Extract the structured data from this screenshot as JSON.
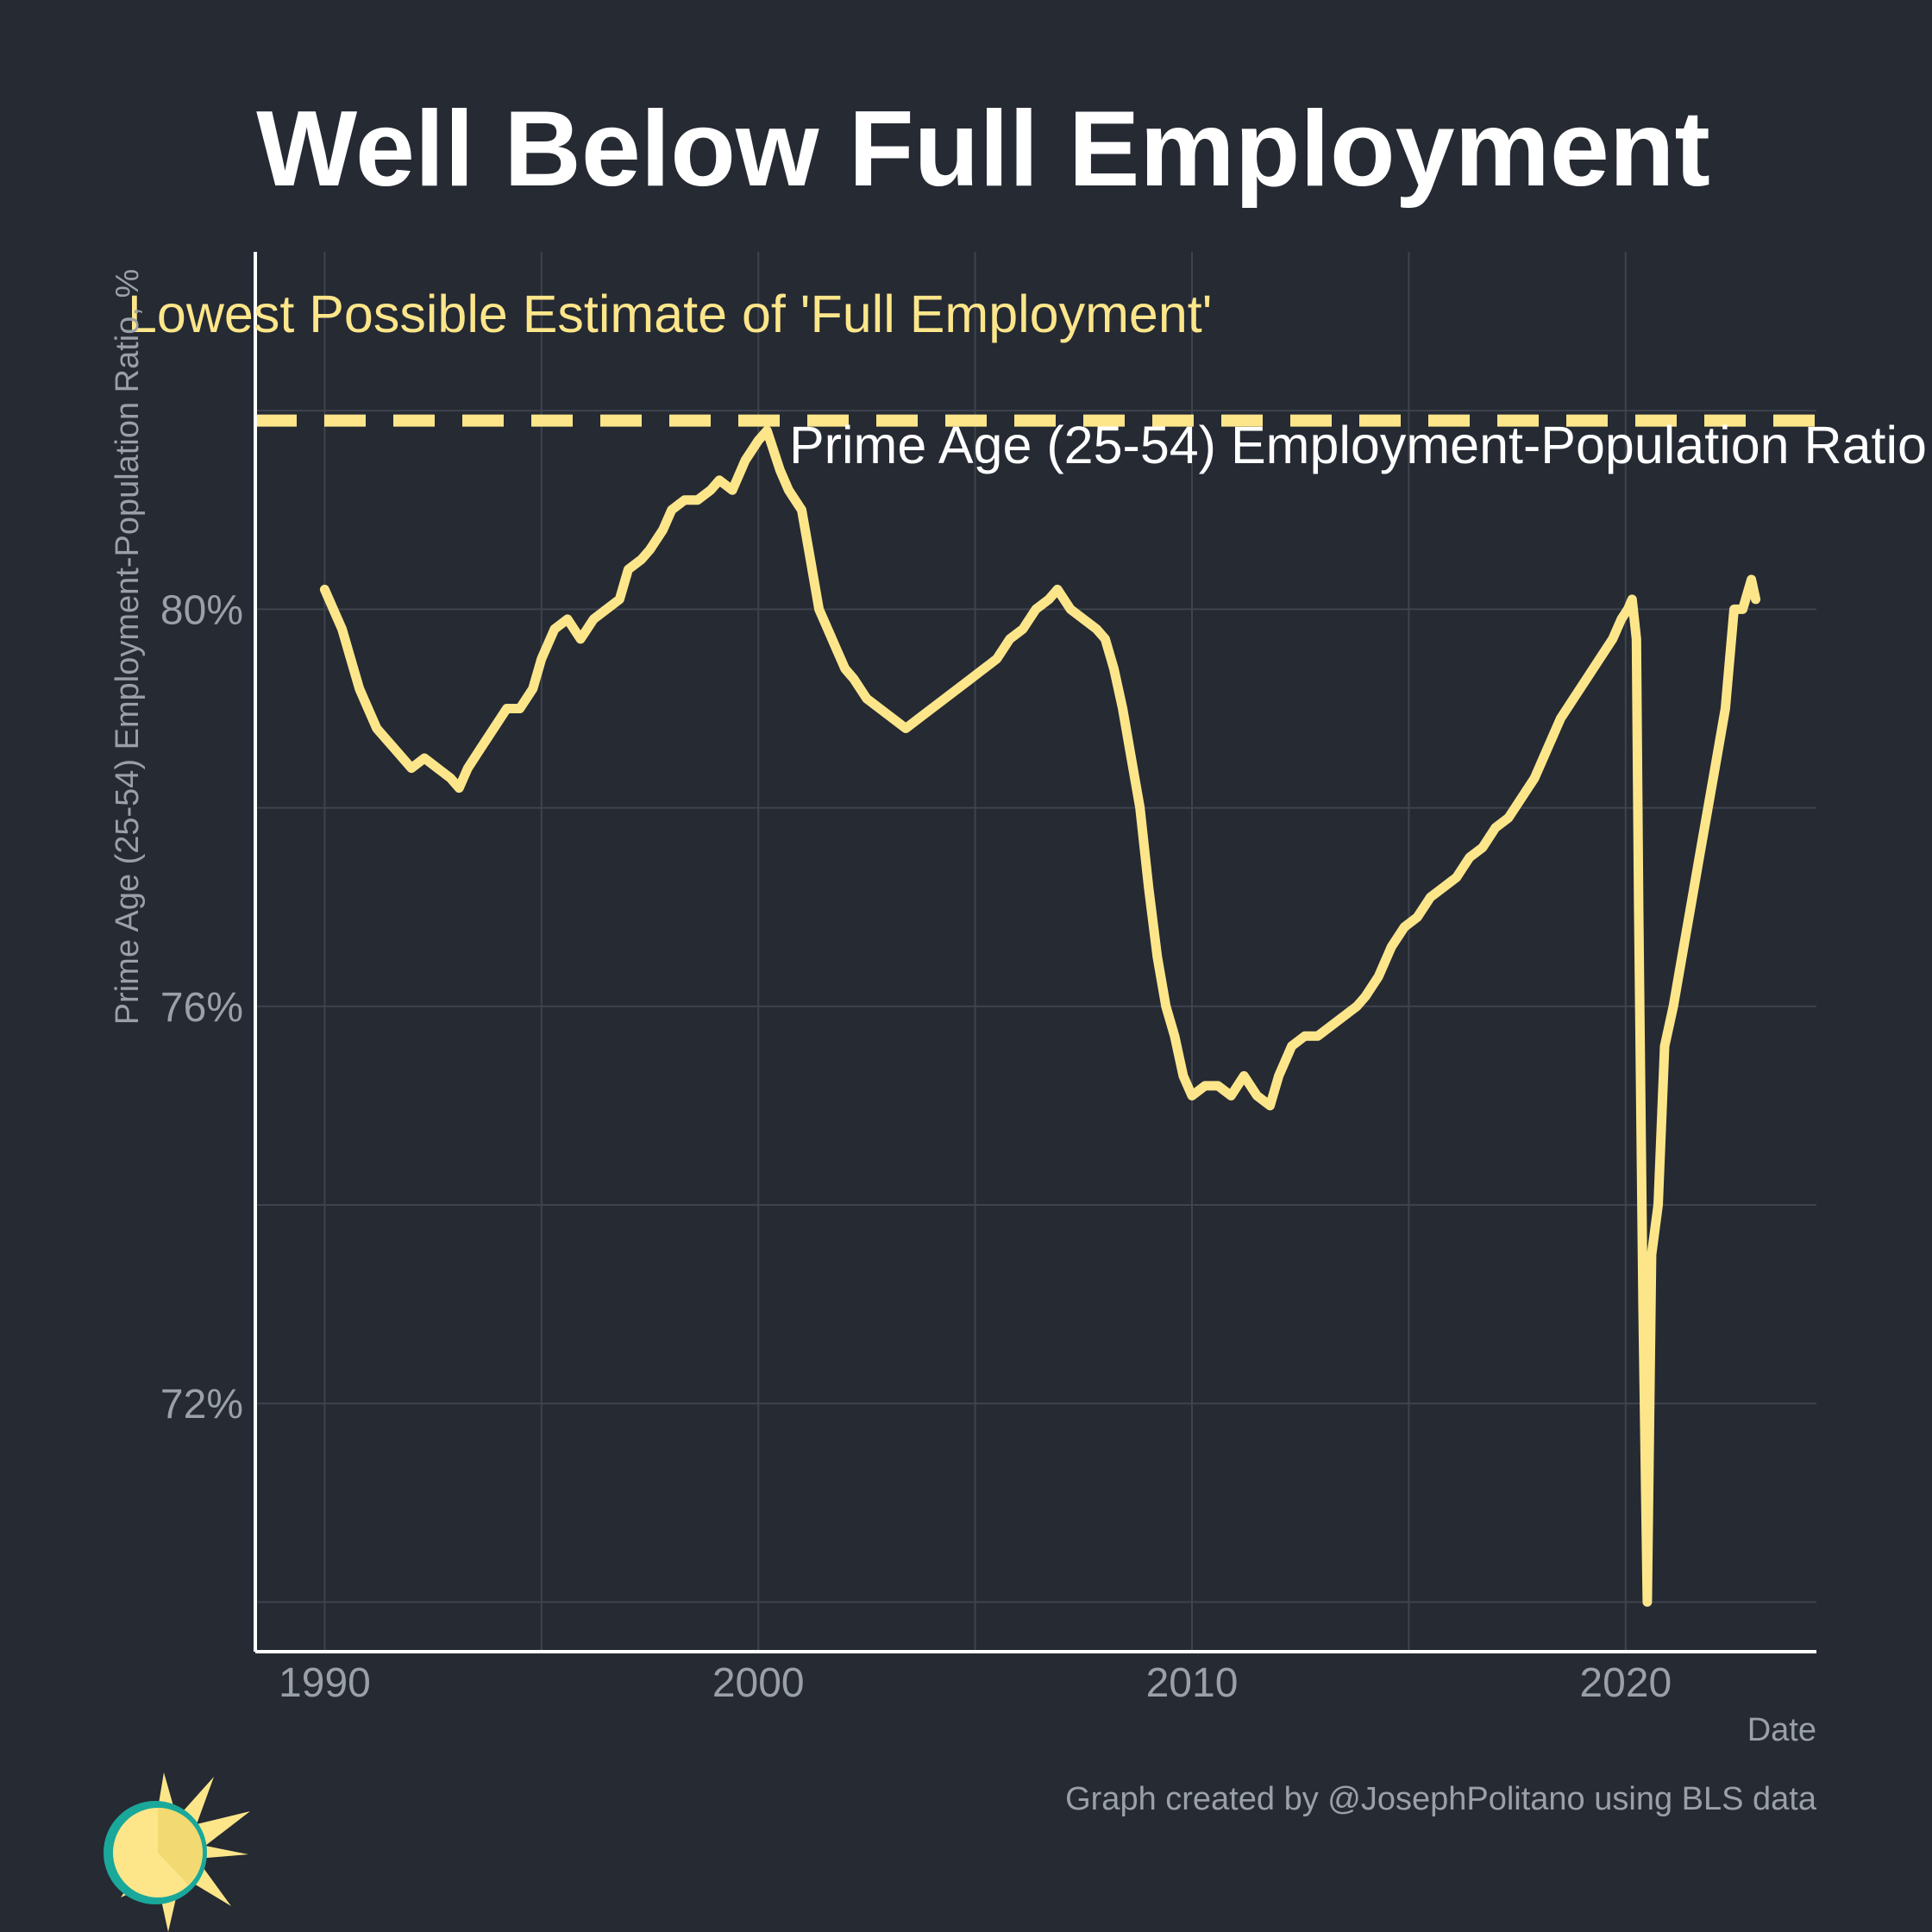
{
  "colors": {
    "background": "#252a33",
    "grid": "#3e434d",
    "axis": "#ffffff",
    "line": "#fde68a",
    "reference": "#fde68a",
    "text_muted": "#9aa0a8"
  },
  "logo": {
    "icon": "sun-logo-icon"
  },
  "chart_data": {
    "type": "line",
    "title": "Well Below Full Employment",
    "xlabel": "Date",
    "ylabel": "Prime Age (25-54) Employment-Population Ratio, %",
    "xlim": [
      1988.4,
      2024.4
    ],
    "ylim": [
      69.5,
      83.6
    ],
    "x_ticks": [
      1990,
      2000,
      2010,
      2020
    ],
    "x_tick_labels": [
      "1990",
      "2000",
      "2010",
      "2020"
    ],
    "y_ticks": [
      72,
      76,
      80
    ],
    "y_tick_labels": [
      "72%",
      "76%",
      "80%"
    ],
    "y_minor_gridlines": [
      70,
      74,
      78,
      82
    ],
    "x_minor_gridlines": [
      1995,
      2005,
      2015
    ],
    "grid": true,
    "legend": "none",
    "reference_line": {
      "y": 81.9,
      "style": "dashed",
      "label": "Lowest Possible Estimate of 'Full Employment'"
    },
    "series_label": "Prime Age (25-54) Employment-Population Ratio",
    "caption": "Graph created by @JosephPolitano using BLS data",
    "series": [
      {
        "x": [
          1990.0,
          1990.2,
          1990.4,
          1990.6,
          1990.8,
          1991.0,
          1991.2,
          1991.4,
          1991.6,
          1991.8,
          1992.0,
          1992.3,
          1992.6,
          1992.9,
          1993.1,
          1993.3,
          1993.6,
          1993.9,
          1994.2,
          1994.5,
          1994.8,
          1995.0,
          1995.3,
          1995.6,
          1995.9,
          1996.2,
          1996.5,
          1996.8,
          1997.0,
          1997.3,
          1997.5,
          1997.8,
          1998.0,
          1998.3,
          1998.6,
          1998.9,
          1999.1,
          1999.4,
          1999.7,
          2000.0,
          2000.2,
          2000.5,
          2000.7,
          2001.0,
          2001.2,
          2001.4,
          2001.6,
          2001.8,
          2002.0,
          2002.2,
          2002.5,
          2002.8,
          2003.1,
          2003.4,
          2003.7,
          2004.0,
          2004.3,
          2004.6,
          2004.9,
          2005.2,
          2005.5,
          2005.8,
          2006.1,
          2006.4,
          2006.7,
          2006.9,
          2007.2,
          2007.5,
          2007.8,
          2008.0,
          2008.2,
          2008.4,
          2008.6,
          2008.8,
          2009.0,
          2009.2,
          2009.4,
          2009.6,
          2009.8,
          2010.0,
          2010.3,
          2010.6,
          2010.9,
          2011.2,
          2011.5,
          2011.8,
          2012.0,
          2012.3,
          2012.6,
          2012.9,
          2013.2,
          2013.5,
          2013.8,
          2014.0,
          2014.3,
          2014.6,
          2014.9,
          2015.2,
          2015.5,
          2015.8,
          2016.1,
          2016.4,
          2016.7,
          2017.0,
          2017.3,
          2017.6,
          2017.9,
          2018.2,
          2018.5,
          2018.8,
          2019.1,
          2019.4,
          2019.7,
          2019.9,
          2020.05,
          2020.15,
          2020.25,
          2020.3,
          2020.4,
          2020.5,
          2020.6,
          2020.75,
          2020.9,
          2021.1,
          2021.3,
          2021.5,
          2021.7,
          2021.9,
          2022.1,
          2022.3,
          2022.5,
          2022.7,
          2022.9,
          2023.0
        ],
        "values": [
          80.2,
          80.0,
          79.8,
          79.5,
          79.2,
          79.0,
          78.8,
          78.7,
          78.6,
          78.5,
          78.4,
          78.5,
          78.4,
          78.3,
          78.2,
          78.4,
          78.6,
          78.8,
          79.0,
          79.0,
          79.2,
          79.5,
          79.8,
          79.9,
          79.7,
          79.9,
          80.0,
          80.1,
          80.4,
          80.5,
          80.6,
          80.8,
          81.0,
          81.1,
          81.1,
          81.2,
          81.3,
          81.2,
          81.5,
          81.7,
          81.8,
          81.4,
          81.2,
          81.0,
          80.5,
          80.0,
          79.8,
          79.6,
          79.4,
          79.3,
          79.1,
          79.0,
          78.9,
          78.8,
          78.9,
          79.0,
          79.1,
          79.2,
          79.3,
          79.4,
          79.5,
          79.7,
          79.8,
          80.0,
          80.1,
          80.2,
          80.0,
          79.9,
          79.8,
          79.7,
          79.4,
          79.0,
          78.5,
          78.0,
          77.2,
          76.5,
          76.0,
          75.7,
          75.3,
          75.1,
          75.2,
          75.2,
          75.1,
          75.3,
          75.1,
          75.0,
          75.3,
          75.6,
          75.7,
          75.7,
          75.8,
          75.9,
          76.0,
          76.1,
          76.3,
          76.6,
          76.8,
          76.9,
          77.1,
          77.2,
          77.3,
          77.5,
          77.6,
          77.8,
          77.9,
          78.1,
          78.3,
          78.6,
          78.9,
          79.1,
          79.3,
          79.5,
          79.7,
          79.9,
          80.0,
          80.1,
          79.7,
          77.0,
          73.0,
          70.0,
          73.5,
          74.0,
          75.6,
          76.0,
          76.5,
          77.0,
          77.5,
          78.0,
          78.5,
          79.0,
          80.0,
          80.0,
          80.3,
          80.1
        ]
      }
    ]
  }
}
